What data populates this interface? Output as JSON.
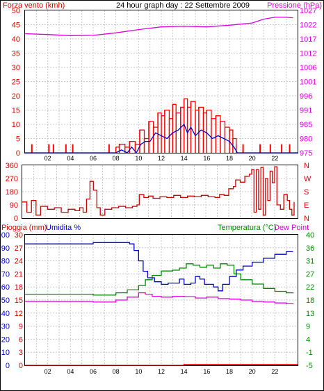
{
  "title": "24 hour graph day : 22 Settembre 2009",
  "colors": {
    "wind": "#dd0000",
    "gust": "#ff0000",
    "pressure": "#dd00dd",
    "humidity": "#0000cc",
    "temperature": "#008800",
    "dewpoint": "#dd00dd",
    "rain": "#dd0000",
    "direction": "#cc0000",
    "grid": "#c8c8c8",
    "frame": "#000000"
  },
  "chart_data": [
    {
      "id": "wind_pressure",
      "type": "line",
      "left_label": "Forza vento (kmh)",
      "right_label": "Pressione (hPa)",
      "left_ticks": [
        "50",
        "45",
        "40",
        "35",
        "30",
        "25",
        "20",
        "15",
        "10",
        "5",
        "0"
      ],
      "right_ticks": [
        "1027",
        "1022",
        "1017",
        "1012",
        "1006",
        "1001",
        "996",
        "991",
        "985",
        "980",
        "975"
      ],
      "x_ticks": [
        "02",
        "04",
        "06",
        "08",
        "10",
        "12",
        "14",
        "16",
        "18",
        "20",
        "22"
      ],
      "xlim": [
        0,
        24
      ],
      "ylim_left": [
        0,
        50
      ],
      "ylim_right": [
        975,
        1027
      ],
      "pressure": [
        [
          0,
          1018.5
        ],
        [
          2,
          1018.2
        ],
        [
          4,
          1017.8
        ],
        [
          6,
          1017.9
        ],
        [
          8,
          1018.8
        ],
        [
          10,
          1020.0
        ],
        [
          12,
          1021.0
        ],
        [
          14,
          1021.2
        ],
        [
          16,
          1021.0
        ],
        [
          18,
          1021.6
        ],
        [
          20,
          1022.4
        ],
        [
          21,
          1023.8
        ],
        [
          22,
          1024.5
        ],
        [
          23,
          1024.5
        ],
        [
          23.6,
          1024.3
        ]
      ],
      "wind_avg": [
        [
          0,
          0
        ],
        [
          8,
          0
        ],
        [
          8.5,
          1
        ],
        [
          9,
          0
        ],
        [
          9.4,
          2
        ],
        [
          9.8,
          0
        ],
        [
          10.2,
          3
        ],
        [
          10.6,
          4
        ],
        [
          11.0,
          4
        ],
        [
          11.5,
          7
        ],
        [
          12.0,
          6
        ],
        [
          12.5,
          5
        ],
        [
          13.0,
          7
        ],
        [
          13.5,
          8
        ],
        [
          14.0,
          10
        ],
        [
          14.3,
          7
        ],
        [
          14.6,
          9
        ],
        [
          15.0,
          6
        ],
        [
          15.5,
          8
        ],
        [
          16.0,
          7
        ],
        [
          16.5,
          5
        ],
        [
          17.0,
          6
        ],
        [
          17.5,
          5
        ],
        [
          18.0,
          4
        ],
        [
          18.4,
          2
        ],
        [
          18.7,
          0
        ],
        [
          24,
          0
        ]
      ],
      "wind_gust": [
        [
          8.0,
          2
        ],
        [
          8.3,
          3
        ],
        [
          8.8,
          2
        ],
        [
          9.2,
          4
        ],
        [
          9.7,
          3
        ],
        [
          10.1,
          8
        ],
        [
          10.5,
          5
        ],
        [
          10.9,
          11
        ],
        [
          11.3,
          9
        ],
        [
          11.7,
          14
        ],
        [
          12.0,
          13
        ],
        [
          12.3,
          15
        ],
        [
          12.7,
          12
        ],
        [
          13.0,
          17
        ],
        [
          13.3,
          14
        ],
        [
          13.7,
          16
        ],
        [
          14.0,
          19
        ],
        [
          14.3,
          16
        ],
        [
          14.6,
          18
        ],
        [
          15.0,
          15
        ],
        [
          15.3,
          16
        ],
        [
          15.7,
          14
        ],
        [
          16.0,
          15
        ],
        [
          16.4,
          12
        ],
        [
          16.8,
          13
        ],
        [
          17.2,
          11
        ],
        [
          17.6,
          9
        ],
        [
          18.0,
          8
        ],
        [
          18.3,
          5
        ],
        [
          18.6,
          3
        ]
      ],
      "gust_spikes": [
        [
          0.6,
          3
        ],
        [
          2.1,
          3
        ],
        [
          2.5,
          3
        ],
        [
          3.6,
          3
        ],
        [
          4.2,
          3
        ],
        [
          7.4,
          3
        ],
        [
          19.2,
          3
        ],
        [
          20.7,
          3
        ],
        [
          21.6,
          3
        ],
        [
          22.6,
          3
        ],
        [
          23.3,
          3
        ]
      ]
    },
    {
      "id": "wind_direction",
      "type": "line",
      "left_ticks": [
        "360",
        "270",
        "180",
        "90",
        "0"
      ],
      "right_ticks": [
        "N",
        "W",
        "S",
        "E",
        "N"
      ],
      "xlim": [
        0,
        24
      ],
      "ylim": [
        0,
        360
      ],
      "direction": [
        [
          0,
          110
        ],
        [
          0.4,
          40
        ],
        [
          0.8,
          120
        ],
        [
          1.2,
          20
        ],
        [
          1.6,
          80
        ],
        [
          2.2,
          60
        ],
        [
          2.8,
          70
        ],
        [
          3.4,
          40
        ],
        [
          4.0,
          60
        ],
        [
          4.6,
          50
        ],
        [
          5.0,
          70
        ],
        [
          5.3,
          40
        ],
        [
          5.6,
          130
        ],
        [
          5.9,
          250
        ],
        [
          6.2,
          190
        ],
        [
          6.5,
          70
        ],
        [
          6.8,
          20
        ],
        [
          7.2,
          60
        ],
        [
          7.8,
          70
        ],
        [
          8.4,
          80
        ],
        [
          9.0,
          70
        ],
        [
          9.6,
          80
        ],
        [
          10.0,
          90
        ],
        [
          10.2,
          160
        ],
        [
          10.6,
          140
        ],
        [
          11.0,
          150
        ],
        [
          11.4,
          135
        ],
        [
          12.0,
          145
        ],
        [
          12.6,
          140
        ],
        [
          13.2,
          155
        ],
        [
          13.8,
          140
        ],
        [
          14.4,
          150
        ],
        [
          15.0,
          145
        ],
        [
          15.6,
          155
        ],
        [
          16.2,
          145
        ],
        [
          16.8,
          140
        ],
        [
          17.2,
          160
        ],
        [
          17.6,
          155
        ],
        [
          18.0,
          200
        ],
        [
          18.4,
          215
        ],
        [
          18.6,
          260
        ],
        [
          19.0,
          245
        ],
        [
          19.4,
          285
        ],
        [
          19.8,
          300
        ],
        [
          20.0,
          330
        ],
        [
          20.2,
          40
        ],
        [
          20.4,
          330
        ],
        [
          20.6,
          60
        ],
        [
          20.8,
          345
        ],
        [
          21.0,
          20
        ],
        [
          21.2,
          270
        ],
        [
          21.4,
          120
        ],
        [
          21.6,
          320
        ],
        [
          21.8,
          240
        ],
        [
          22.0,
          350
        ],
        [
          22.2,
          90
        ],
        [
          22.5,
          60
        ],
        [
          22.8,
          160
        ],
        [
          23.1,
          120
        ],
        [
          23.3,
          60
        ],
        [
          23.5,
          20
        ],
        [
          23.7,
          110
        ]
      ]
    },
    {
      "id": "rain_humidity_temperature",
      "type": "line",
      "left_label": "Pioggia (mm)",
      "left_label2": "Umidita %",
      "right_label": "Temperatura (°C)",
      "right_label2": "Dew Point",
      "rain_ticks": [
        "30",
        "27",
        "24",
        "21",
        "18",
        "15",
        "12",
        "9",
        "6",
        "3",
        "0"
      ],
      "humidity_ticks": [
        "100",
        "90",
        "80",
        "70",
        "60",
        "50",
        "40",
        "30",
        "20",
        "10",
        "0"
      ],
      "temp_ticks": [
        "40",
        "36",
        "31",
        "27",
        "22",
        "18",
        "13",
        "9",
        "4",
        "-1",
        "-5"
      ],
      "x_ticks": [
        "02",
        "04",
        "06",
        "08",
        "10",
        "12",
        "14",
        "16",
        "18",
        "20",
        "22"
      ],
      "xlim": [
        0,
        24
      ],
      "ylim_humidity": [
        0,
        100
      ],
      "ylim_temp": [
        -5,
        40
      ],
      "humidity": [
        [
          0,
          93
        ],
        [
          3,
          93
        ],
        [
          6,
          94
        ],
        [
          8,
          94
        ],
        [
          9.2,
          93
        ],
        [
          9.6,
          88
        ],
        [
          10.0,
          80
        ],
        [
          10.4,
          72
        ],
        [
          10.8,
          67
        ],
        [
          11.4,
          64
        ],
        [
          12.0,
          62
        ],
        [
          12.6,
          63
        ],
        [
          13.2,
          63
        ],
        [
          13.6,
          66
        ],
        [
          14.0,
          62
        ],
        [
          14.6,
          63
        ],
        [
          15.0,
          68
        ],
        [
          15.4,
          66
        ],
        [
          15.8,
          62
        ],
        [
          16.2,
          62
        ],
        [
          16.6,
          60
        ],
        [
          17.0,
          57
        ],
        [
          17.4,
          62
        ],
        [
          18.0,
          68
        ],
        [
          18.6,
          73
        ],
        [
          19.2,
          76
        ],
        [
          20.0,
          79
        ],
        [
          21.0,
          82
        ],
        [
          22.0,
          85
        ],
        [
          23.0,
          87
        ],
        [
          23.6,
          87
        ]
      ],
      "temperature": [
        [
          0,
          19.5
        ],
        [
          2,
          19.5
        ],
        [
          4,
          19.5
        ],
        [
          6,
          19.2
        ],
        [
          8,
          20.0
        ],
        [
          9,
          21.0
        ],
        [
          10,
          22.5
        ],
        [
          10.6,
          24.5
        ],
        [
          11.2,
          26.0
        ],
        [
          12.0,
          27.5
        ],
        [
          13.0,
          27.8
        ],
        [
          13.6,
          28.5
        ],
        [
          14.2,
          30.0
        ],
        [
          14.8,
          29.5
        ],
        [
          15.4,
          28.8
        ],
        [
          16.0,
          29.5
        ],
        [
          16.6,
          28.5
        ],
        [
          17.2,
          30.0
        ],
        [
          17.8,
          29.5
        ],
        [
          18.4,
          26.5
        ],
        [
          19.0,
          24.5
        ],
        [
          20.0,
          23.0
        ],
        [
          21.0,
          21.5
        ],
        [
          22.0,
          20.5
        ],
        [
          23.0,
          20.0
        ],
        [
          23.6,
          19.8
        ]
      ],
      "dewpoint": [
        [
          0,
          17.0
        ],
        [
          3,
          17.0
        ],
        [
          6,
          16.8
        ],
        [
          8,
          17.5
        ],
        [
          9,
          18.5
        ],
        [
          10,
          20.0
        ],
        [
          10.6,
          19.5
        ],
        [
          11.2,
          18.8
        ],
        [
          12,
          18.5
        ],
        [
          13,
          18.8
        ],
        [
          14,
          18.6
        ],
        [
          15,
          18.2
        ],
        [
          16,
          18.5
        ],
        [
          17,
          18.0
        ],
        [
          18,
          17.8
        ],
        [
          19,
          17.5
        ],
        [
          20,
          17.0
        ],
        [
          21,
          16.8
        ],
        [
          22,
          16.5
        ],
        [
          23,
          16.2
        ],
        [
          23.6,
          16.0
        ]
      ],
      "rain": [
        [
          0,
          0
        ],
        [
          14,
          0
        ],
        [
          14,
          0.2
        ],
        [
          24,
          0.2
        ]
      ]
    }
  ]
}
